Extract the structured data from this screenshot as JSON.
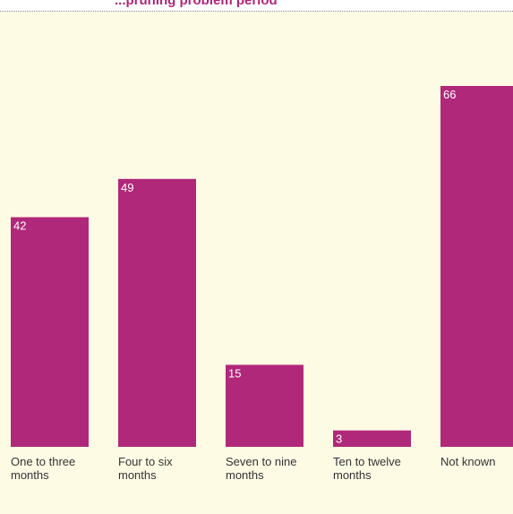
{
  "title_partial": "...pruning problem period",
  "colors": {
    "bar": "#b0287a",
    "background": "#fefbe5",
    "title": "#b0277a"
  },
  "chart_data": {
    "type": "bar",
    "categories": [
      [
        "One to three",
        "months"
      ],
      [
        "Four to six",
        "months"
      ],
      [
        "Seven to nine",
        "months"
      ],
      [
        "Ten to twelve",
        "months"
      ],
      [
        "Not known"
      ]
    ],
    "values": [
      42,
      49,
      15,
      3,
      66
    ],
    "ylim": [
      0,
      66
    ],
    "grid": false,
    "legend": "none",
    "data_labels": "inside-top-left"
  }
}
